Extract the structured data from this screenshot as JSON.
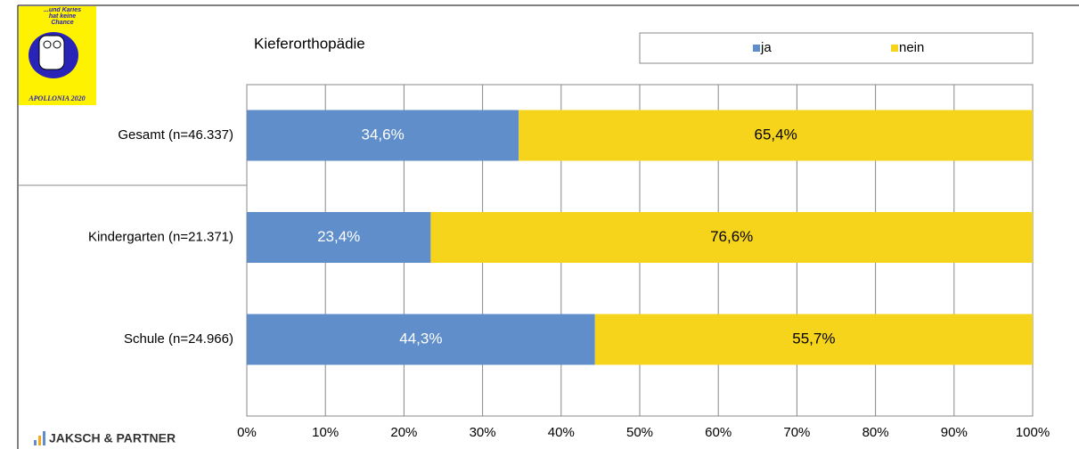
{
  "chart_data": {
    "type": "stacked-bar-horizontal",
    "title": "Kieferorthopädie",
    "categories": [
      "Gesamt (n=46.337)",
      "Kindergarten (n=21.371)",
      "Schule (n=24.966)"
    ],
    "series": [
      {
        "name": "ja",
        "color": "#5f8ecb",
        "values": [
          34.6,
          23.4,
          44.3
        ],
        "value_labels": [
          "34,6%",
          "23,4%",
          "44,3%"
        ]
      },
      {
        "name": "nein",
        "color": "#f6d41c",
        "values": [
          65.4,
          76.6,
          55.7
        ],
        "value_labels": [
          "65,4%",
          "76,6%",
          "55,7%"
        ]
      }
    ],
    "xlim": [
      0,
      100
    ],
    "xticks": [
      {
        "value": 0,
        "label": "0%"
      },
      {
        "value": 10,
        "label": "10%"
      },
      {
        "value": 20,
        "label": "20%"
      },
      {
        "value": 30,
        "label": "30%"
      },
      {
        "value": 40,
        "label": "40%"
      },
      {
        "value": 50,
        "label": "50%"
      },
      {
        "value": 60,
        "label": "60%"
      },
      {
        "value": 70,
        "label": "70%"
      },
      {
        "value": 80,
        "label": "80%"
      },
      {
        "value": 90,
        "label": "90%"
      },
      {
        "value": 100,
        "label": "100%"
      }
    ],
    "grid": true,
    "legend": "top-right"
  },
  "branding": {
    "logo_text": "...und Karies hat keine Chance",
    "logo_caption": "APOLLONIA 2020",
    "footer": "JAKSCH & PARTNER"
  }
}
